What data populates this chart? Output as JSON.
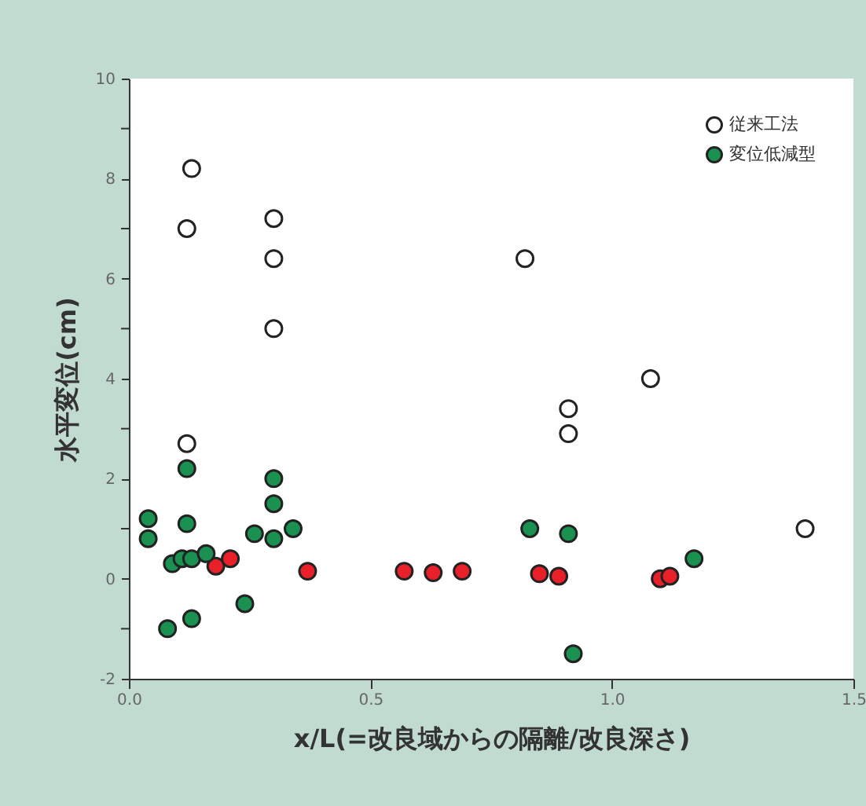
{
  "chart_data": {
    "type": "scatter",
    "xlabel": "x/L(=改良域からの隔離/改良深さ)",
    "ylabel": "水平変位(cm)",
    "xlim": [
      0,
      1.5
    ],
    "xticks": [
      {
        "value": 0,
        "label": "0.0"
      },
      0.5,
      {
        "value": 1,
        "label": "1.0"
      },
      1.5
    ],
    "ylim": [
      -2,
      10
    ],
    "yticks": [
      -2,
      {
        "value": -1,
        "label": null
      },
      0,
      {
        "value": 1,
        "label": null
      },
      2,
      {
        "value": 3,
        "label": null
      },
      4,
      {
        "value": 5,
        "label": null
      },
      6,
      {
        "value": 7,
        "label": null
      },
      8,
      {
        "value": 9,
        "label": null
      },
      10
    ],
    "legend": "top right",
    "marker": "circle",
    "series": [
      {
        "color": "#e8202a",
        "x": [
          0.18,
          0.21,
          0.37,
          0.57,
          0.63,
          0.69,
          0.85,
          0.89,
          1.1,
          1.12
        ],
        "values": [
          0.25,
          0.4,
          0.15,
          0.15,
          0.12,
          0.15,
          0.1,
          0.05,
          0,
          0.05
        ]
      },
      {
        "name": "従来工法",
        "color": "#ffffff",
        "x": [
          0.13,
          0.12,
          0.3,
          0.3,
          0.3,
          0.12,
          0.82,
          0.91,
          0.91,
          1.08,
          1.4
        ],
        "values": [
          8.2,
          7.0,
          7.2,
          6.4,
          5.0,
          2.7,
          6.4,
          3.4,
          2.9,
          4.0,
          1.0
        ]
      },
      {
        "name": "変位低減型",
        "color": "#1a9150",
        "x": [
          0.04,
          0.04,
          0.12,
          0.12,
          0.09,
          0.11,
          0.13,
          0.16,
          0.08,
          0.13,
          0.24,
          0.26,
          0.3,
          0.3,
          0.3,
          0.34,
          0.83,
          0.91,
          0.92,
          1.17
        ],
        "values": [
          1.2,
          0.8,
          2.2,
          1.1,
          0.3,
          0.4,
          0.4,
          0.5,
          -1.0,
          -0.8,
          -0.5,
          0.9,
          2.0,
          1.5,
          0.8,
          1.0,
          1.0,
          0.9,
          -1.5,
          0.4
        ]
      }
    ]
  }
}
